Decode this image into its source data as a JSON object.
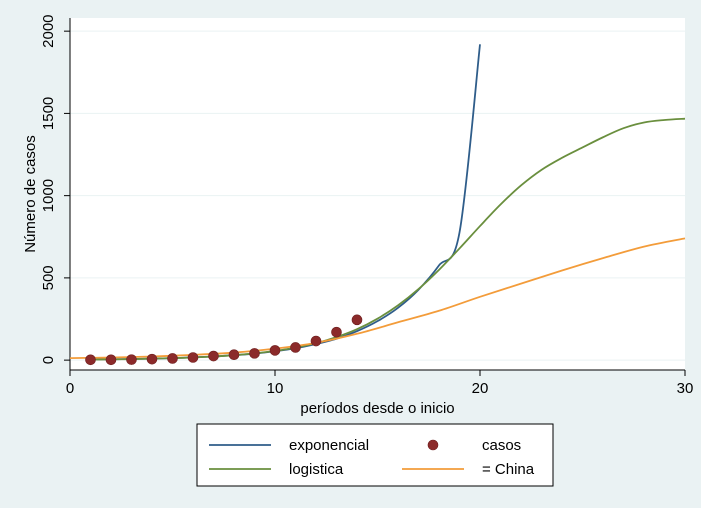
{
  "chart_data": {
    "type": "line",
    "title": "",
    "xlabel": "períodos desde o inicio",
    "ylabel": "Número de casos",
    "xlim": [
      0,
      30
    ],
    "ylim": [
      -60,
      2080
    ],
    "x_ticks": [
      0,
      10,
      20,
      30
    ],
    "y_ticks": [
      0,
      500,
      1000,
      1500,
      2000
    ],
    "grid": false,
    "legend_position": "bottom",
    "colors": {
      "plot_background": "#ffffff",
      "outer_background": "#eaf2f3",
      "grid_line": "#eaf2f3"
    },
    "series": [
      {
        "name": "exponencial",
        "type": "line",
        "color": "#2f5d8a",
        "x": [
          1,
          2,
          3,
          4,
          5,
          6,
          7,
          8,
          9,
          10,
          11,
          12,
          13,
          14,
          15,
          16,
          17,
          18,
          19,
          20
        ],
        "values": [
          4,
          5,
          7,
          9,
          12,
          17,
          22,
          30,
          40,
          54,
          72,
          98,
          130,
          176,
          237,
          318,
          428,
          576,
          776,
          1920
        ]
      },
      {
        "name": "casos",
        "type": "scatter",
        "color": "#8b2a2a",
        "x": [
          1,
          2,
          3,
          4,
          5,
          6,
          7,
          8,
          9,
          10,
          11,
          12,
          13,
          14
        ],
        "values": [
          2,
          2,
          3,
          6,
          10,
          16,
          25,
          33,
          41,
          59,
          77,
          116,
          170,
          245
        ]
      },
      {
        "name": "logistica",
        "type": "line",
        "color": "#6a8f3e",
        "x": [
          1,
          2,
          3,
          4,
          5,
          6,
          7,
          8,
          9,
          10,
          11,
          12,
          13,
          14,
          15,
          16,
          17,
          18,
          19,
          20,
          21,
          22,
          23,
          24,
          25,
          26,
          27,
          28,
          29,
          30
        ],
        "values": [
          3,
          5,
          6,
          9,
          12,
          16,
          22,
          30,
          41,
          56,
          76,
          103,
          140,
          188,
          252,
          333,
          432,
          549,
          679,
          815,
          946,
          1062,
          1157,
          1230,
          1293,
          1355,
          1410,
          1445,
          1460,
          1468
        ]
      },
      {
        "name": "= China",
        "type": "line",
        "color": "#f39c3a",
        "x": [
          0,
          2,
          4,
          6,
          8,
          10,
          12,
          14,
          16,
          18,
          20,
          22,
          24,
          26,
          28,
          30
        ],
        "values": [
          12,
          16,
          22,
          32,
          46,
          70,
          105,
          160,
          230,
          300,
          385,
          465,
          545,
          620,
          690,
          740
        ]
      }
    ]
  }
}
